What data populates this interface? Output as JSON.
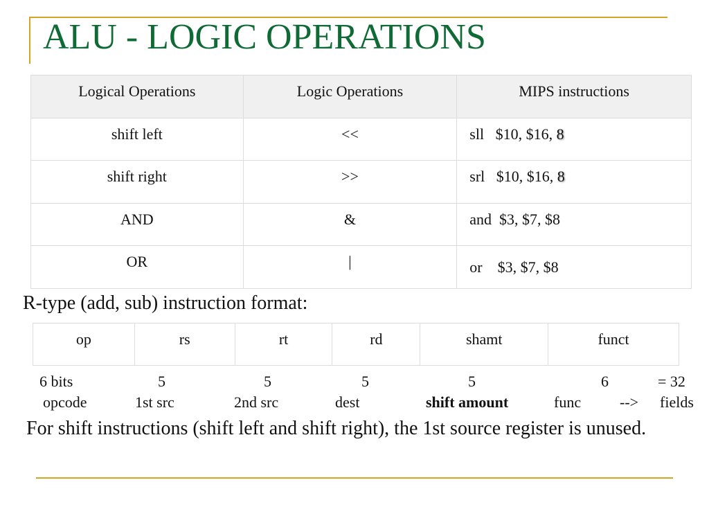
{
  "title": "ALU - LOGIC OPERATIONS",
  "ops_table": {
    "headers": [
      "Logical Operations",
      "Logic Operations",
      "MIPS instructions"
    ],
    "rows": [
      {
        "op": "shift left",
        "symbol": "<<",
        "mips": "sll   $10, $16, ",
        "mips_imm": "8"
      },
      {
        "op": "shift right",
        "symbol": ">>",
        "mips": "srl   $10, $16, ",
        "mips_imm": "8"
      },
      {
        "op": "AND",
        "symbol": "&",
        "mips": "and  $3, $7, $8",
        "mips_imm": ""
      },
      {
        "op": "OR",
        "symbol": "|",
        "mips": "or    $3, $7, $8",
        "mips_imm": ""
      }
    ]
  },
  "rtype_label": "R-type (add, sub) instruction format:",
  "format_fields": [
    "op",
    "rs",
    "rt",
    "rd",
    "shamt",
    "funct"
  ],
  "bit_widths": [
    "6 bits",
    "5",
    "5",
    "5",
    "5",
    "6",
    "= 32"
  ],
  "field_names": [
    "opcode",
    "1st src",
    "2nd src",
    "dest",
    "shift amount",
    "func",
    "-->",
    "fields"
  ],
  "note": "For shift instructions (shift left and shift right), the 1st source register is unused.",
  "colors": {
    "title": "#0f6a35",
    "accent_line": "#d4a520",
    "header_bg": "#f0f0f0"
  }
}
